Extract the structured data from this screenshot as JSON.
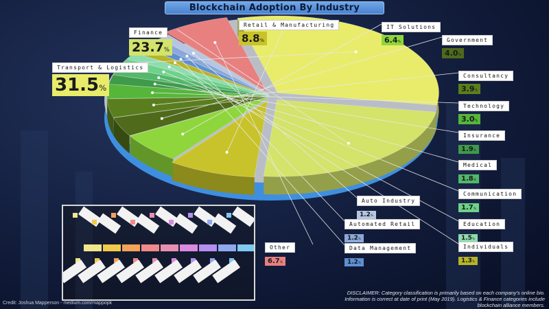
{
  "title": "Blockchain Adoption By Industry",
  "chart_data": {
    "type": "pie",
    "title": "Blockchain Adoption By Industry",
    "value_suffix": "%",
    "slices": [
      {
        "name": "Transport & Logistics",
        "value": 31.5,
        "display": "31.5",
        "color": "#e8ec6a"
      },
      {
        "name": "Finance",
        "value": 23.7,
        "display": "23.7",
        "color": "#d4e36a"
      },
      {
        "name": "Retail & Manufacturing",
        "value": 8.8,
        "display": "8.8",
        "color": "#c8c32a"
      },
      {
        "name": "IT Solutions",
        "value": 6.4,
        "display": "6.4",
        "color": "#8ed63b"
      },
      {
        "name": "Government",
        "value": 4.0,
        "display": "4.0",
        "color": "#4e6a1a"
      },
      {
        "name": "Consultancy",
        "value": 3.9,
        "display": "3.9",
        "color": "#5a7e1e"
      },
      {
        "name": "Technology",
        "value": 3.0,
        "display": "3.0",
        "color": "#56b63a"
      },
      {
        "name": "Insurance",
        "value": 1.9,
        "display": "1.9",
        "color": "#3f9a4a"
      },
      {
        "name": "Medical",
        "value": 1.8,
        "display": "1.8",
        "color": "#52b86a"
      },
      {
        "name": "Communication",
        "value": 1.7,
        "display": "1.7",
        "color": "#6ed28a"
      },
      {
        "name": "Education",
        "value": 1.5,
        "display": "1.5",
        "color": "#8fdcae"
      },
      {
        "name": "Individuals",
        "value": 1.3,
        "display": "1.3",
        "color": "#b7b428"
      },
      {
        "name": "Data Management",
        "value": 1.2,
        "display": "1.2",
        "color": "#5e8fd2"
      },
      {
        "name": "Automated Retail",
        "value": 1.2,
        "display": "1.2",
        "color": "#8aa8d8"
      },
      {
        "name": "Auto Industry",
        "value": 1.2,
        "display": "1.2",
        "color": "#b4c6e4"
      },
      {
        "name": "Other",
        "value": 6.7,
        "display": "6.7",
        "color": "#e88080"
      }
    ],
    "legend_inset_colors": [
      "#f0e68c",
      "#f2c94c",
      "#f4a15a",
      "#f08a8a",
      "#e88fb0",
      "#d98ae0",
      "#b48ef0",
      "#8fa8f0",
      "#7fc8f0"
    ]
  },
  "credit": "Credit: Joshua Mapperson - medium.com/mappopk",
  "disclaimer": "DISCLAIMER: Category classification is primarily based on each company's online bio. Information is correct at date of print (May 2019). Logistics & Finance categories include blockchain alliance members."
}
